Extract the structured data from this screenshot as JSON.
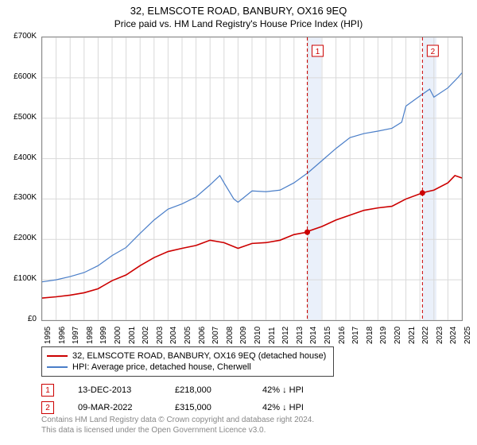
{
  "title": "32, ELMSCOTE ROAD, BANBURY, OX16 9EQ",
  "subtitle": "Price paid vs. HM Land Registry's House Price Index (HPI)",
  "chart": {
    "type": "line",
    "ylim": [
      0,
      700000
    ],
    "ytick_step": 100000,
    "yticks": [
      "£0",
      "£100K",
      "£200K",
      "£300K",
      "£400K",
      "£500K",
      "£600K",
      "£700K"
    ],
    "xlim": [
      1995,
      2025
    ],
    "xticks": [
      "1995",
      "1996",
      "1997",
      "1998",
      "1999",
      "2000",
      "2001",
      "2002",
      "2003",
      "2004",
      "2005",
      "2006",
      "2007",
      "2008",
      "2009",
      "2010",
      "2011",
      "2012",
      "2013",
      "2014",
      "2015",
      "2016",
      "2017",
      "2018",
      "2019",
      "2020",
      "2021",
      "2022",
      "2023",
      "2024",
      "2025"
    ],
    "grid_color": "#d9d9d9",
    "background_color": "#ffffff",
    "border_color": "#888888",
    "series": [
      {
        "name": "price_paid",
        "label": "32, ELMSCOTE ROAD, BANBURY, OX16 9EQ (detached house)",
        "color": "#cc0000",
        "line_width": 1.6,
        "data": [
          [
            1995,
            55000
          ],
          [
            1996,
            58000
          ],
          [
            1997,
            62000
          ],
          [
            1998,
            68000
          ],
          [
            1999,
            78000
          ],
          [
            2000,
            98000
          ],
          [
            2001,
            112000
          ],
          [
            2002,
            135000
          ],
          [
            2003,
            155000
          ],
          [
            2004,
            170000
          ],
          [
            2005,
            178000
          ],
          [
            2006,
            185000
          ],
          [
            2007,
            198000
          ],
          [
            2008,
            192000
          ],
          [
            2009,
            178000
          ],
          [
            2010,
            190000
          ],
          [
            2011,
            192000
          ],
          [
            2012,
            198000
          ],
          [
            2013,
            212000
          ],
          [
            2013.95,
            218000
          ],
          [
            2014,
            220000
          ],
          [
            2015,
            232000
          ],
          [
            2016,
            248000
          ],
          [
            2017,
            260000
          ],
          [
            2018,
            272000
          ],
          [
            2019,
            278000
          ],
          [
            2020,
            282000
          ],
          [
            2021,
            300000
          ],
          [
            2022.18,
            315000
          ],
          [
            2022.5,
            318000
          ],
          [
            2023,
            322000
          ],
          [
            2024,
            340000
          ],
          [
            2024.5,
            358000
          ],
          [
            2025,
            352000
          ]
        ]
      },
      {
        "name": "hpi",
        "label": "HPI: Average price, detached house, Cherwell",
        "color": "#4a7ec8",
        "line_width": 1.2,
        "data": [
          [
            1995,
            95000
          ],
          [
            1996,
            100000
          ],
          [
            1997,
            108000
          ],
          [
            1998,
            118000
          ],
          [
            1999,
            135000
          ],
          [
            2000,
            160000
          ],
          [
            2001,
            180000
          ],
          [
            2002,
            215000
          ],
          [
            2003,
            248000
          ],
          [
            2004,
            275000
          ],
          [
            2005,
            288000
          ],
          [
            2006,
            305000
          ],
          [
            2007,
            335000
          ],
          [
            2007.7,
            358000
          ],
          [
            2008,
            340000
          ],
          [
            2008.7,
            300000
          ],
          [
            2009,
            292000
          ],
          [
            2010,
            320000
          ],
          [
            2011,
            318000
          ],
          [
            2012,
            322000
          ],
          [
            2013,
            340000
          ],
          [
            2014,
            365000
          ],
          [
            2015,
            395000
          ],
          [
            2016,
            425000
          ],
          [
            2017,
            452000
          ],
          [
            2018,
            462000
          ],
          [
            2019,
            468000
          ],
          [
            2020,
            475000
          ],
          [
            2020.7,
            490000
          ],
          [
            2021,
            530000
          ],
          [
            2022,
            555000
          ],
          [
            2022.7,
            572000
          ],
          [
            2023,
            552000
          ],
          [
            2024,
            575000
          ],
          [
            2024.7,
            600000
          ],
          [
            2025,
            612000
          ]
        ]
      }
    ],
    "bands": [
      {
        "from": 2013.95,
        "to": 2014.95,
        "color": "#eaf0fa"
      },
      {
        "from": 2022.18,
        "to": 2023.18,
        "color": "#eaf0fa"
      }
    ],
    "event_markers": [
      {
        "id": "1",
        "x": 2013.95,
        "y": 218000,
        "line_color": "#cc0000",
        "line_dash": "4,3",
        "box_border": "#cc0000",
        "box_fill": "#ffffff",
        "box_text": "#cc0000",
        "dot_color": "#cc0000"
      },
      {
        "id": "2",
        "x": 2022.18,
        "y": 315000,
        "line_color": "#cc0000",
        "line_dash": "4,3",
        "box_border": "#cc0000",
        "box_fill": "#ffffff",
        "box_text": "#cc0000",
        "dot_color": "#cc0000"
      }
    ]
  },
  "legend": {
    "series1_label": "32, ELMSCOTE ROAD, BANBURY, OX16 9EQ (detached house)",
    "series1_color": "#cc0000",
    "series2_label": "HPI: Average price, detached house, Cherwell",
    "series2_color": "#4a7ec8"
  },
  "events": [
    {
      "marker": "1",
      "date": "13-DEC-2013",
      "price": "£218,000",
      "delta": "42% ↓ HPI",
      "border_color": "#cc0000"
    },
    {
      "marker": "2",
      "date": "09-MAR-2022",
      "price": "£315,000",
      "delta": "42% ↓ HPI",
      "border_color": "#cc0000"
    }
  ],
  "attribution": {
    "line1": "Contains HM Land Registry data © Crown copyright and database right 2024.",
    "line2": "This data is licensed under the Open Government Licence v3.0."
  }
}
